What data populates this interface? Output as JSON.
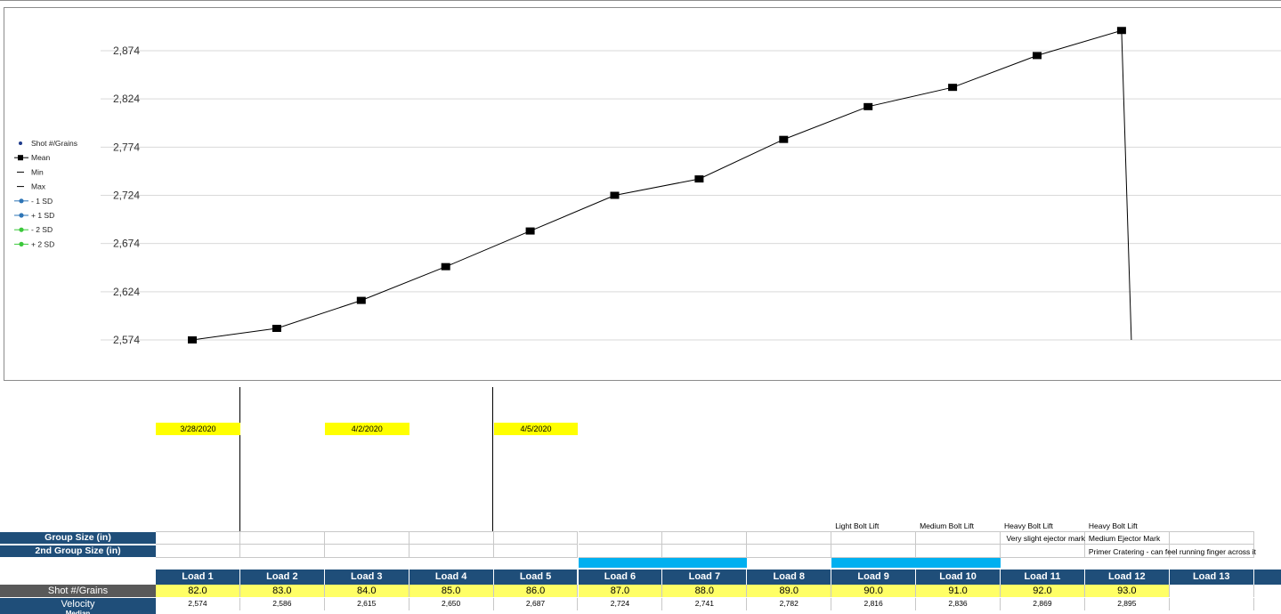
{
  "chart_data": {
    "type": "line",
    "y_ticks": [
      "2,874",
      "2,824",
      "2,774",
      "2,724",
      "2,674",
      "2,624",
      "2,574"
    ],
    "ylim": [
      2574,
      2874
    ],
    "grid": true,
    "legend_position": "left",
    "legend": [
      "Shot #/Grains",
      "Mean",
      "Min",
      "Max",
      "- 1 SD",
      "+ 1 SD",
      "- 2 SD",
      "+ 2 SD"
    ],
    "legend_colors": [
      "#1f3c8c",
      "#000000",
      "#000000",
      "#000000",
      "#2e75b6",
      "#2e75b6",
      "#3cc83c",
      "#3cc83c"
    ],
    "series": [
      {
        "name": "Mean",
        "x": [
          82,
          83,
          84,
          85,
          86,
          87,
          88,
          89,
          90,
          91,
          92,
          93
        ],
        "values": [
          2574,
          2586,
          2615,
          2650,
          2687,
          2724,
          2741,
          2782,
          2816,
          2836,
          2869,
          2895
        ]
      }
    ]
  },
  "dates": [
    "3/28/2020",
    "4/2/2020",
    "4/5/2020"
  ],
  "notes_row1": [
    "Light Bolt Lift",
    "Medium Bolt Lift",
    "Heavy Bolt Lift",
    "Heavy Bolt Lift"
  ],
  "notes_row2": [
    "Very slight ejector mark",
    "Medium Ejector Mark"
  ],
  "notes_row3": [
    "Primer Cratering - can feel running finger across it"
  ],
  "labels": {
    "group_size": "Group Size (in)",
    "group_size_2": "2nd Group Size (in)",
    "shot_grains": "Shot #/Grains",
    "velocity": "Velocity",
    "partial_row": "Median"
  },
  "loads": [
    "Load 1",
    "Load 2",
    "Load 3",
    "Load 4",
    "Load 5",
    "Load 6",
    "Load 7",
    "Load 8",
    "Load 9",
    "Load 10",
    "Load 11",
    "Load 12",
    "Load 13",
    "L"
  ],
  "grains": [
    "82.0",
    "83.0",
    "84.0",
    "85.0",
    "86.0",
    "87.0",
    "88.0",
    "89.0",
    "90.0",
    "91.0",
    "92.0",
    "93.0"
  ],
  "velocities": [
    "2,574",
    "2,586",
    "2,615",
    "2,650",
    "2,687",
    "2,724",
    "2,741",
    "2,782",
    "2,816",
    "2,836",
    "2,869",
    "2,895"
  ],
  "colors": {
    "header_blue": "#1f4e79",
    "highlight_yellow": "#ffff00",
    "accent_cyan": "#00b0f0"
  }
}
